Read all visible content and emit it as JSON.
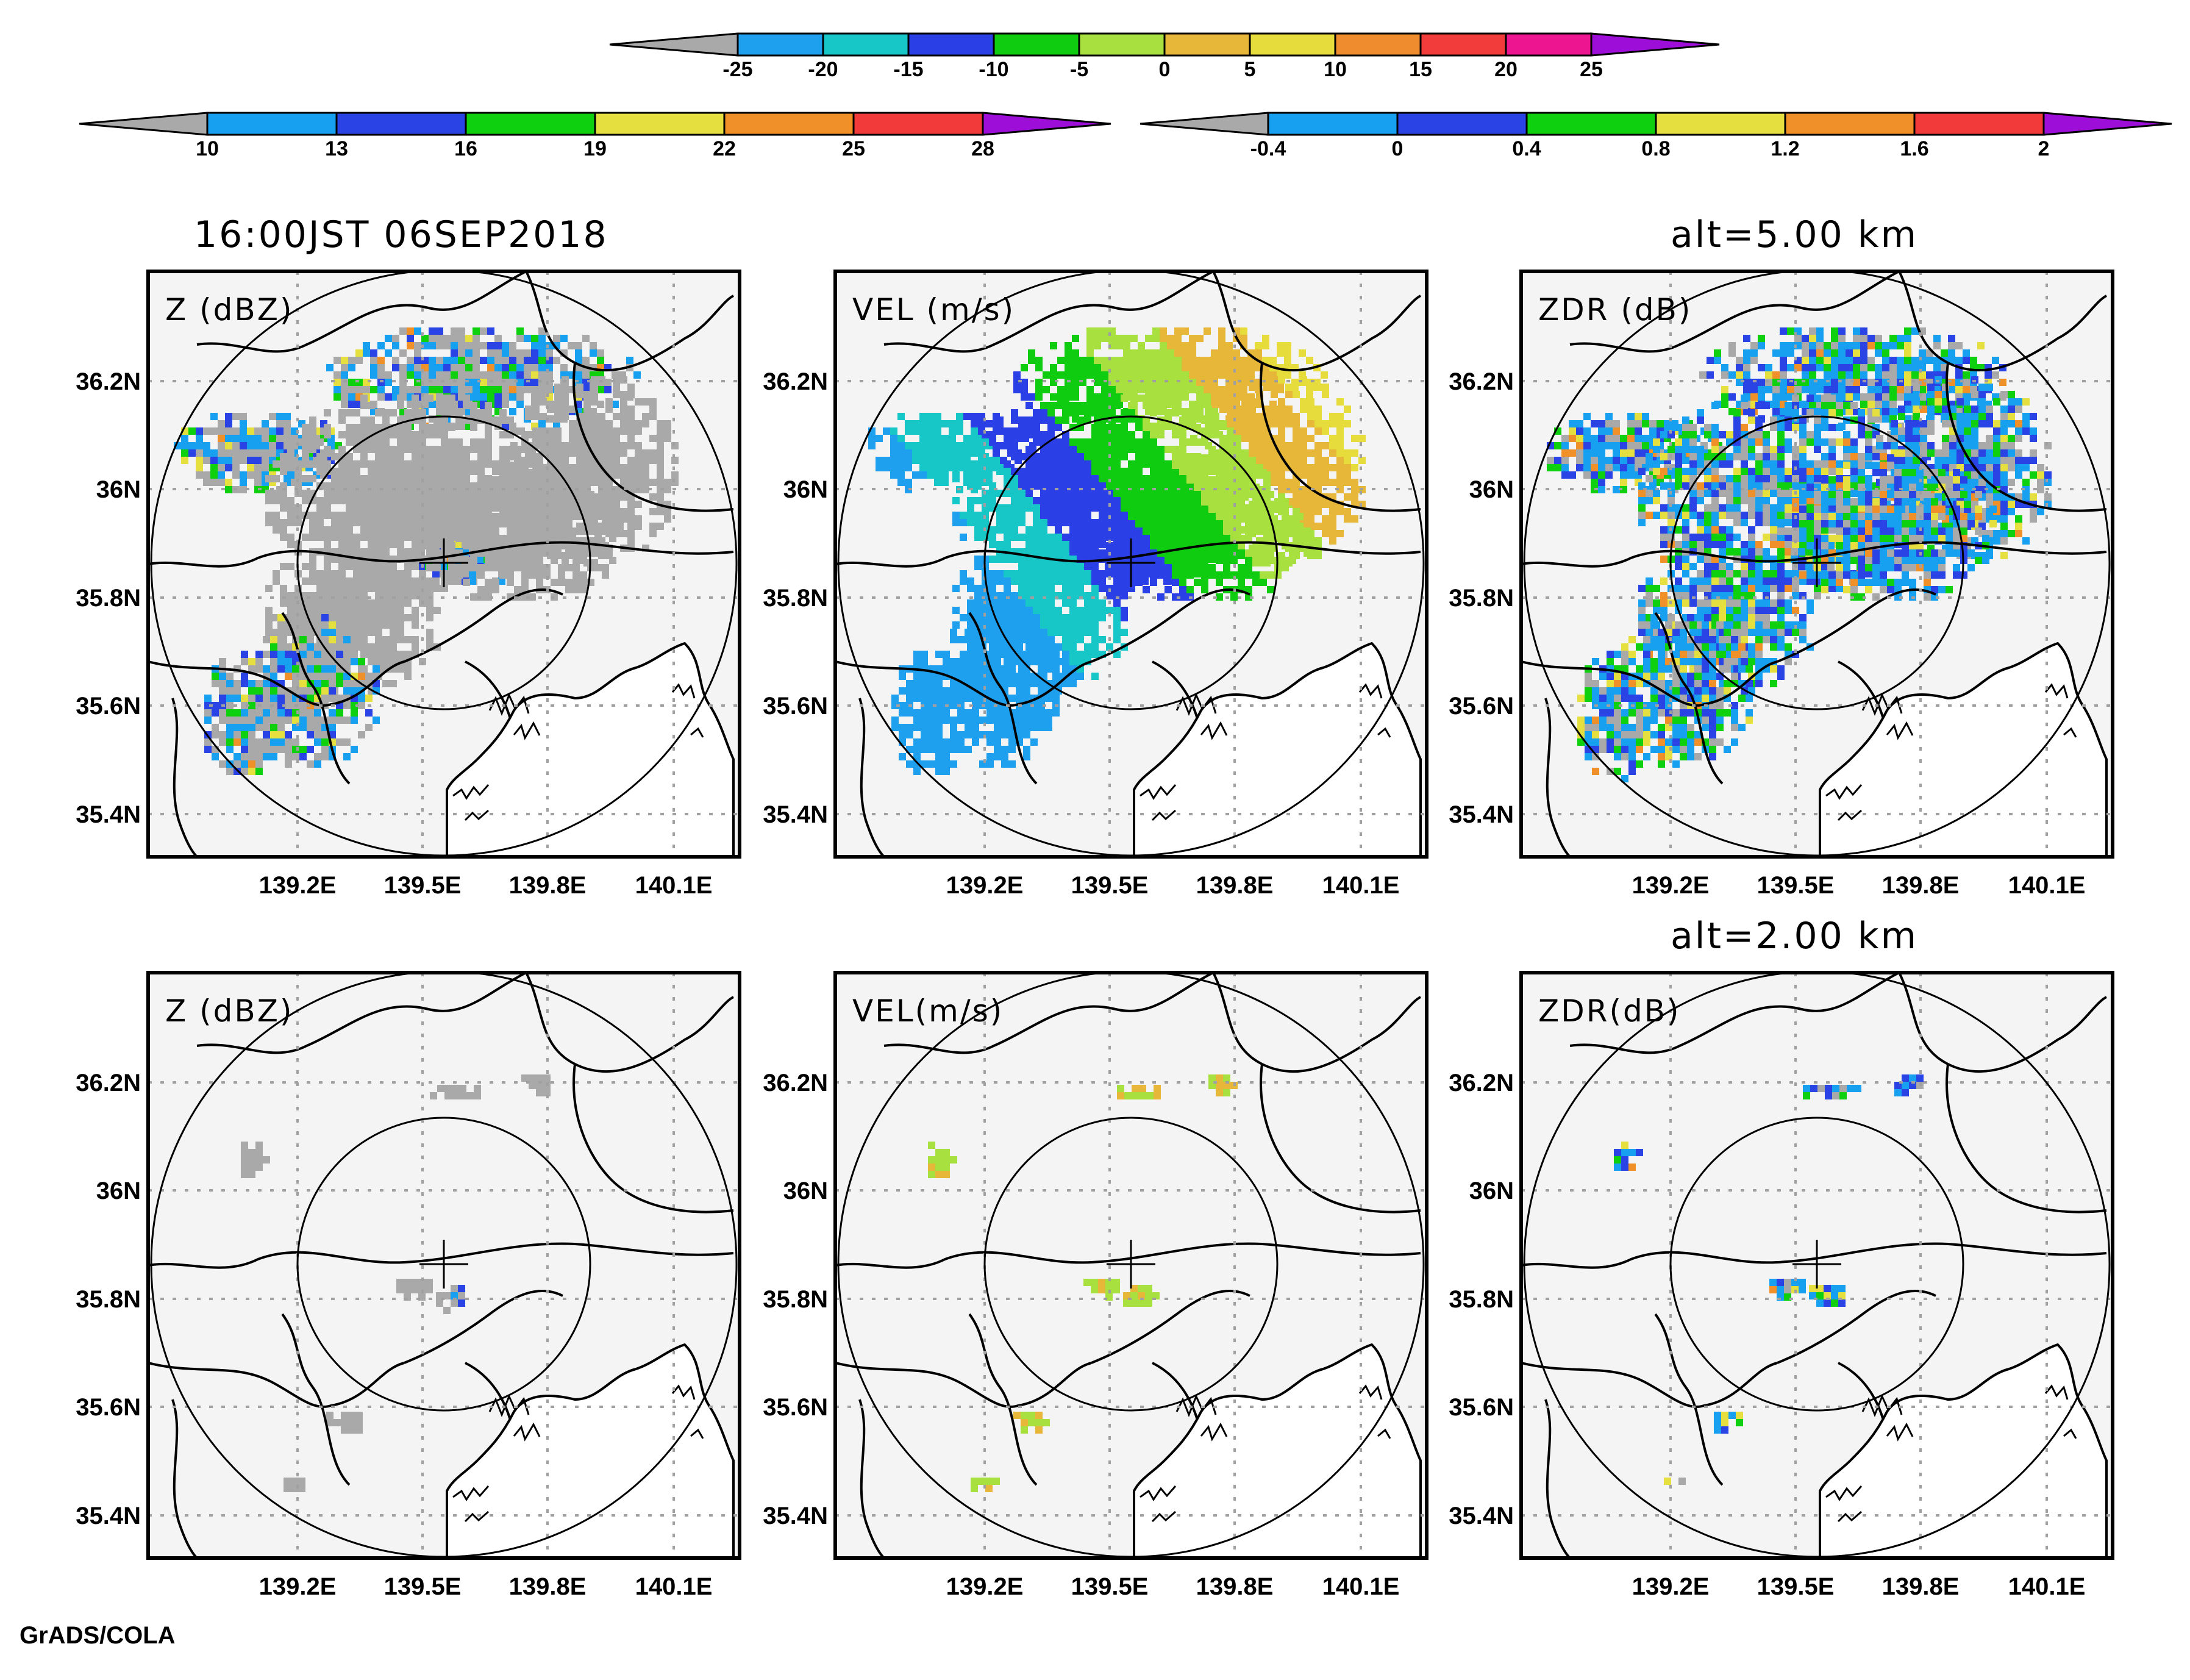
{
  "title_time": "16:00JST 06SEP2018",
  "alt_upper": "alt=5.00 km",
  "alt_lower": "alt=2.00 km",
  "credit": "GrADS/COLA",
  "colorbars": {
    "vel": {
      "ticks": [
        "-25",
        "-20",
        "-15",
        "-10",
        "-5",
        "0",
        "5",
        "10",
        "15",
        "20",
        "25"
      ],
      "colors": [
        "#1fa0ee",
        "#17c7c7",
        "#2a3fe6",
        "#10cc10",
        "#a8e040",
        "#e7b73a",
        "#e6dc3c",
        "#ef8c2d",
        "#f23b3b",
        "#ee1690"
      ],
      "under": "#a9a9a9",
      "over": "#9d0fd9"
    },
    "z": {
      "ticks": [
        "10",
        "13",
        "16",
        "19",
        "22",
        "25",
        "28"
      ],
      "colors": [
        "#17a0f0",
        "#2a43e4",
        "#0fd00f",
        "#e5df40",
        "#ef9128",
        "#f23a3a"
      ],
      "under": "#a9a9a9",
      "over": "#9d0fd9"
    },
    "zdr": {
      "ticks": [
        "-0.4",
        "0",
        "0.4",
        "0.8",
        "1.2",
        "1.6",
        "2"
      ],
      "colors": [
        "#17a0f0",
        "#2a43e4",
        "#0fd00f",
        "#e5df40",
        "#ef9128",
        "#f23a3a"
      ],
      "under": "#a9a9a9",
      "over": "#9d0fd9"
    }
  },
  "axes": {
    "lat_labels": [
      "36.2N",
      "36N",
      "35.8N",
      "35.6N",
      "35.4N"
    ],
    "lon_labels": [
      "139.2E",
      "139.5E",
      "139.8E",
      "140.1E"
    ]
  },
  "panels": [
    {
      "id": "z5",
      "label": "Z (dBZ)",
      "field": "z",
      "alt_km": 5
    },
    {
      "id": "vel5",
      "label": "VEL (m/s)",
      "field": "vel",
      "alt_km": 5
    },
    {
      "id": "zdr5",
      "label": "ZDR (dB)",
      "field": "zdr",
      "alt_km": 5
    },
    {
      "id": "z2",
      "label": "Z (dBZ)",
      "field": "z",
      "alt_km": 2
    },
    {
      "id": "vel2",
      "label": "VEL(m/s)",
      "field": "vel",
      "alt_km": 2
    },
    {
      "id": "zdr2",
      "label": "ZDR(dB)",
      "field": "zdr",
      "alt_km": 2
    }
  ],
  "colors": {
    "map_bg": "#f4f4f4",
    "grid": "#a0a0a0",
    "echo_gray": "#a9a9a9"
  }
}
